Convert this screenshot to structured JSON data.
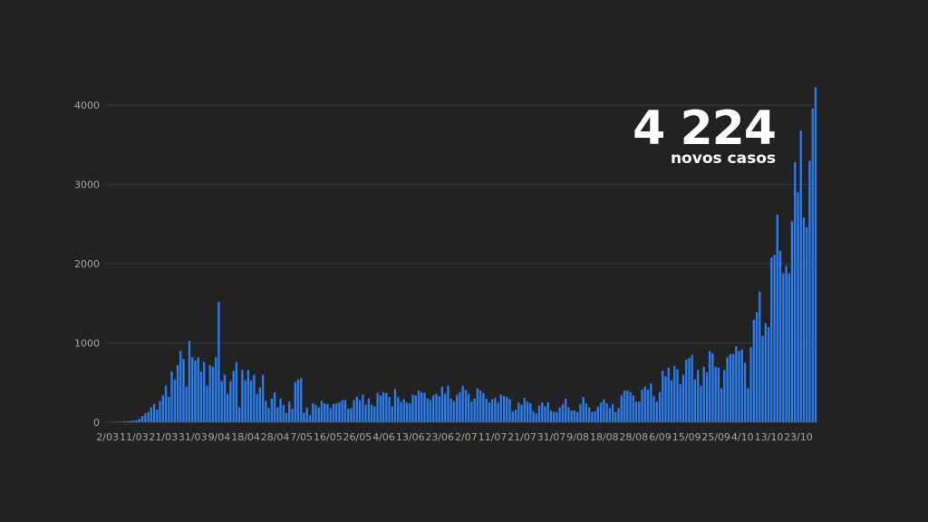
{
  "callout": {
    "value": "4 224",
    "label": "novos casos"
  },
  "colors": {
    "background": "#222222",
    "bar": "#2a7ef0",
    "grid": "#3a3a3a",
    "tick_text": "#a6a6a6",
    "callout_text": "#ffffff"
  },
  "chart_data": {
    "type": "bar",
    "title": "",
    "xlabel": "",
    "ylabel": "",
    "ylim": [
      0,
      4224
    ],
    "grid": true,
    "yticks": [
      0,
      1000,
      2000,
      3000,
      4000
    ],
    "ytick_labels": [
      "0",
      "1000",
      "2000",
      "3000",
      "4000"
    ],
    "xtick_labels": [
      "2/03",
      "11/03",
      "21/03",
      "31/03",
      "9/04",
      "18/04",
      "28/04",
      "7/05",
      "16/05",
      "26/05",
      "4/06",
      "13/06",
      "23/06",
      "2/07",
      "11/07",
      "21/07",
      "31/07",
      "9/08",
      "18/08",
      "28/08",
      "6/09",
      "15/09",
      "25/09",
      "4/10",
      "13/10",
      "23/10"
    ],
    "start_date": "2020-03-02",
    "values": [
      2,
      0,
      4,
      7,
      5,
      8,
      13,
      12,
      18,
      20,
      28,
      45,
      80,
      110,
      130,
      190,
      230,
      160,
      270,
      340,
      460,
      320,
      640,
      540,
      720,
      900,
      800,
      450,
      1030,
      820,
      780,
      820,
      640,
      760,
      460,
      720,
      700,
      820,
      1520,
      520,
      600,
      360,
      520,
      650,
      760,
      190,
      660,
      530,
      660,
      530,
      600,
      360,
      440,
      600,
      270,
      180,
      300,
      380,
      190,
      300,
      220,
      120,
      260,
      170,
      510,
      540,
      560,
      120,
      180,
      90,
      240,
      220,
      190,
      270,
      240,
      230,
      180,
      230,
      240,
      250,
      280,
      280,
      170,
      180,
      280,
      320,
      280,
      350,
      220,
      300,
      220,
      200,
      370,
      340,
      380,
      370,
      320,
      200,
      420,
      320,
      260,
      290,
      250,
      240,
      350,
      340,
      400,
      380,
      370,
      300,
      280,
      340,
      360,
      330,
      450,
      360,
      460,
      300,
      270,
      350,
      380,
      460,
      410,
      360,
      260,
      300,
      430,
      400,
      370,
      300,
      250,
      290,
      310,
      250,
      350,
      330,
      320,
      290,
      140,
      160,
      250,
      220,
      310,
      260,
      240,
      140,
      110,
      210,
      250,
      200,
      250,
      150,
      130,
      130,
      190,
      230,
      300,
      190,
      150,
      150,
      130,
      230,
      320,
      240,
      190,
      130,
      140,
      200,
      250,
      290,
      240,
      180,
      230,
      130,
      180,
      340,
      400,
      400,
      380,
      340,
      260,
      260,
      410,
      450,
      410,
      490,
      330,
      260,
      380,
      650,
      580,
      690,
      530,
      710,
      670,
      480,
      600,
      790,
      810,
      850,
      540,
      660,
      460,
      700,
      630,
      900,
      870,
      700,
      690,
      430,
      660,
      820,
      860,
      860,
      960,
      900,
      920,
      750,
      430,
      950,
      1290,
      1390,
      1650,
      1090,
      1250,
      1200,
      2080,
      2110,
      2620,
      2160,
      1880,
      1970,
      1880,
      2540,
      3280,
      2900,
      3680,
      2580,
      2460,
      3300,
      3960,
      4224
    ]
  }
}
